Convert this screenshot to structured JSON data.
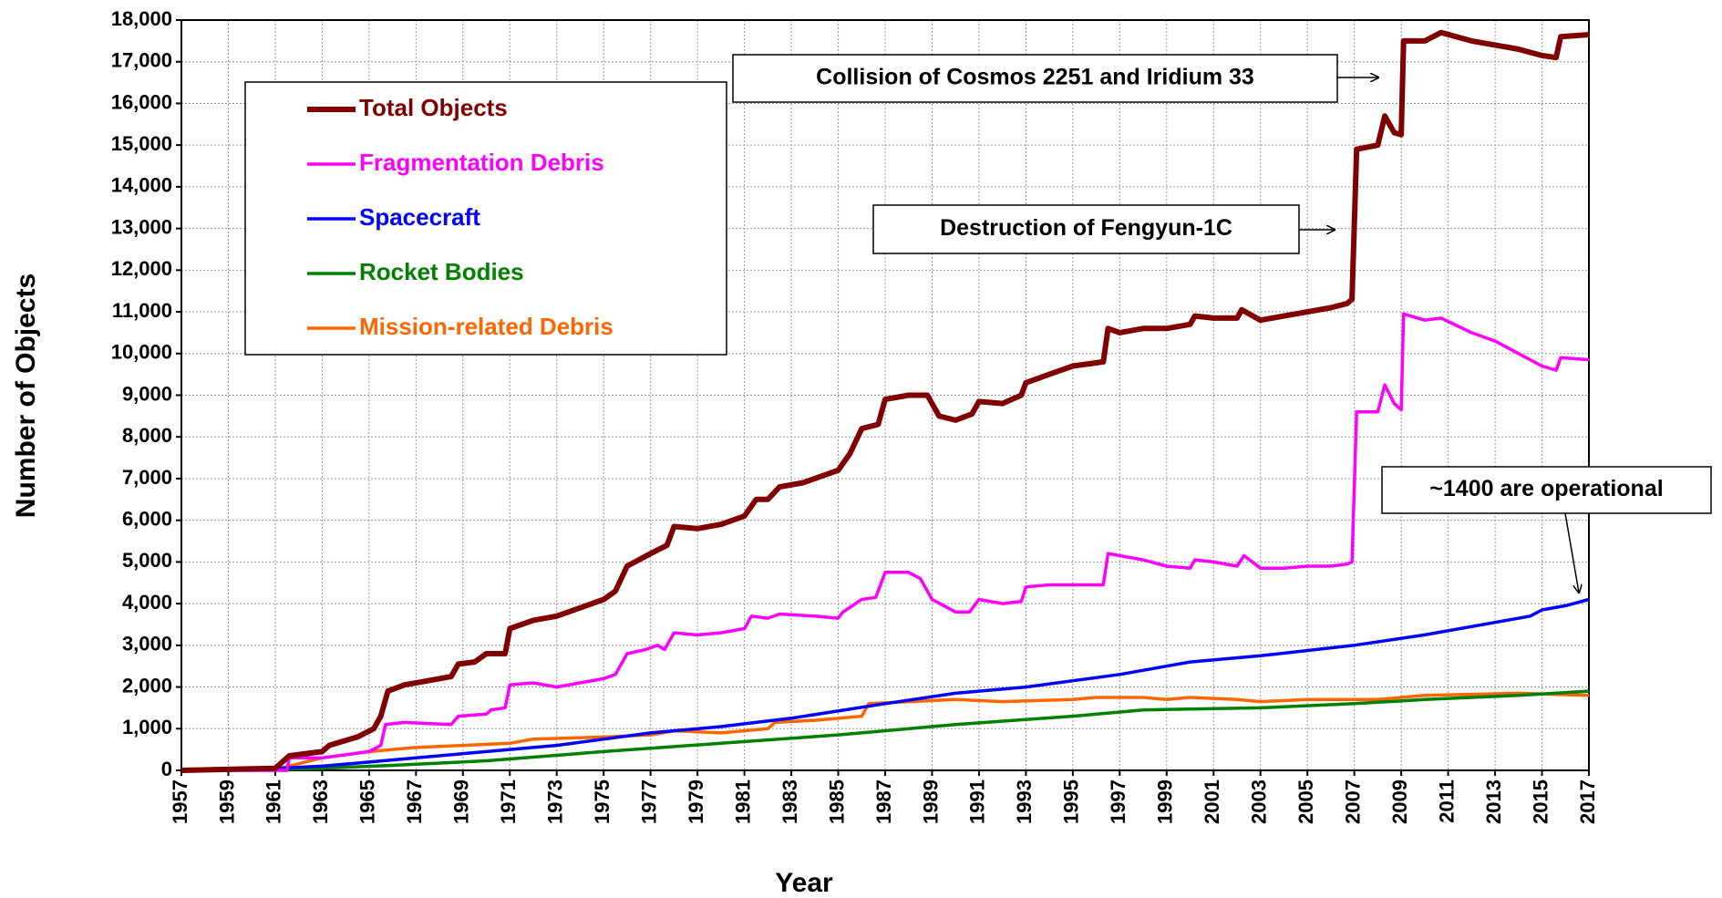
{
  "chart_data": {
    "type": "line",
    "xlabel": "Year",
    "ylabel": "Number of Objects",
    "xlim": [
      1957,
      2017
    ],
    "xticks": [
      1957,
      1959,
      1961,
      1963,
      1965,
      1967,
      1969,
      1971,
      1973,
      1975,
      1977,
      1979,
      1981,
      1983,
      1985,
      1987,
      1989,
      1991,
      1993,
      1995,
      1997,
      1999,
      2001,
      2003,
      2005,
      2007,
      2009,
      2011,
      2013,
      2015,
      2017
    ],
    "ylim": [
      0,
      18000
    ],
    "yticks": [
      {
        "value": 0,
        "label": "0"
      },
      {
        "value": 1000,
        "label": "1,000"
      },
      {
        "value": 2000,
        "label": "2,000"
      },
      {
        "value": 3000,
        "label": "3,000"
      },
      {
        "value": 4000,
        "label": "4,000"
      },
      {
        "value": 5000,
        "label": "5,000"
      },
      {
        "value": 6000,
        "label": "6,000"
      },
      {
        "value": 7000,
        "label": "7,000"
      },
      {
        "value": 8000,
        "label": "8,000"
      },
      {
        "value": 9000,
        "label": "9,000"
      },
      {
        "value": 10000,
        "label": "10,000"
      },
      {
        "value": 11000,
        "label": "11,000"
      },
      {
        "value": 12000,
        "label": "12,000"
      },
      {
        "value": 13000,
        "label": "13,000"
      },
      {
        "value": 14000,
        "label": "14,000"
      },
      {
        "value": 15000,
        "label": "15,000"
      },
      {
        "value": 16000,
        "label": "16,000"
      },
      {
        "value": 17000,
        "label": "17,000"
      },
      {
        "value": 18000,
        "label": "18,000"
      }
    ],
    "grid": true,
    "legend": "upper left",
    "annotations": [
      "Collision of Cosmos 2251 and Iridium 33",
      "Destruction of Fengyun-1C",
      "~1400 are operational"
    ],
    "series": [
      {
        "name": "Total Objects",
        "color": "#800000",
        "x": [
          1957,
          1961,
          1961.6,
          1963,
          1963.3,
          1964.5,
          1965.2,
          1965.5,
          1965.8,
          1966.5,
          1968,
          1968.5,
          1968.8,
          1969.5,
          1970,
          1970.8,
          1971,
          1972,
          1973,
          1974,
          1975,
          1975.5,
          1976,
          1977,
          1977.7,
          1978,
          1979,
          1980,
          1981,
          1981.5,
          1982,
          1982.5,
          1983.5,
          1984,
          1985,
          1985.5,
          1986,
          1986.7,
          1987,
          1988,
          1988.8,
          1989.3,
          1990,
          1990.7,
          1991,
          1992,
          1992.8,
          1993,
          1994,
          1995,
          1996.3,
          1996.5,
          1997,
          1998,
          1999,
          2000,
          2000.2,
          2001,
          2002,
          2002.2,
          2003,
          2004,
          2005,
          2006,
          2006.7,
          2006.9,
          2007.1,
          2008,
          2008.3,
          2008.7,
          2009,
          2009.1,
          2010,
          2010.7,
          2012,
          2013,
          2014,
          2015,
          2015.6,
          2015.8,
          2017
        ],
        "values": [
          0,
          50,
          350,
          450,
          600,
          800,
          1000,
          1300,
          1900,
          2050,
          2200,
          2250,
          2550,
          2600,
          2800,
          2800,
          3400,
          3600,
          3700,
          3900,
          4100,
          4300,
          4900,
          5200,
          5400,
          5850,
          5800,
          5900,
          6100,
          6500,
          6500,
          6800,
          6900,
          7000,
          7200,
          7600,
          8200,
          8300,
          8900,
          9000,
          9000,
          8500,
          8400,
          8550,
          8850,
          8800,
          9000,
          9300,
          9500,
          9700,
          9800,
          10600,
          10500,
          10600,
          10600,
          10700,
          10900,
          10850,
          10850,
          11050,
          10800,
          10900,
          11000,
          11100,
          11200,
          11300,
          14900,
          15000,
          15700,
          15300,
          15250,
          17500,
          17500,
          17700,
          17500,
          17400,
          17300,
          17150,
          17100,
          17600,
          17650
        ]
      },
      {
        "name": "Fragmentation Debris",
        "color": "#ff00ff",
        "x": [
          1957,
          1961.5,
          1961.6,
          1963,
          1965,
          1965.5,
          1965.7,
          1966.5,
          1968.5,
          1968.8,
          1970,
          1970.2,
          1970.8,
          1971,
          1972,
          1973,
          1974,
          1975,
          1975.5,
          1976,
          1976.8,
          1977.3,
          1977.6,
          1978,
          1979,
          1980,
          1981,
          1981.3,
          1982,
          1982.5,
          1984,
          1985,
          1985.2,
          1986,
          1986.6,
          1987,
          1988,
          1988.5,
          1989,
          1990,
          1990.6,
          1991,
          1992,
          1992.8,
          1993,
          1994,
          1995,
          1996.3,
          1996.5,
          1997,
          1998,
          1999,
          2000,
          2000.2,
          2001,
          2002,
          2002.3,
          2003,
          2004,
          2005,
          2006,
          2006.7,
          2006.9,
          2007.1,
          2008,
          2008.3,
          2008.7,
          2009,
          2009.1,
          2010,
          2010.7,
          2012,
          2013,
          2014,
          2015,
          2015.6,
          2015.8,
          2017
        ],
        "values": [
          0,
          0,
          300,
          300,
          450,
          600,
          1100,
          1150,
          1100,
          1300,
          1350,
          1450,
          1500,
          2050,
          2100,
          2000,
          2100,
          2200,
          2300,
          2800,
          2900,
          3000,
          2900,
          3300,
          3250,
          3300,
          3400,
          3700,
          3650,
          3750,
          3700,
          3650,
          3800,
          4100,
          4150,
          4750,
          4750,
          4600,
          4100,
          3800,
          3800,
          4100,
          4000,
          4050,
          4400,
          4450,
          4450,
          4450,
          5200,
          5150,
          5050,
          4900,
          4850,
          5050,
          5000,
          4900,
          5150,
          4850,
          4850,
          4900,
          4900,
          4950,
          5000,
          8600,
          8600,
          9250,
          8800,
          8650,
          10950,
          10800,
          10850,
          10500,
          10300,
          10000,
          9700,
          9600,
          9900,
          9850
        ]
      },
      {
        "name": "Spacecraft",
        "color": "#0000ff",
        "x": [
          1957,
          1960,
          1963,
          1965,
          1967,
          1970,
          1973,
          1977,
          1980,
          1983,
          1987,
          1990,
          1993,
          1997,
          2000,
          2003,
          2007,
          2010,
          2013,
          2014.5,
          2015,
          2016,
          2017
        ],
        "values": [
          0,
          20,
          100,
          200,
          300,
          450,
          600,
          900,
          1050,
          1250,
          1600,
          1850,
          2000,
          2300,
          2600,
          2750,
          3000,
          3250,
          3550,
          3700,
          3850,
          3950,
          4100
        ]
      },
      {
        "name": "Rocket Bodies",
        "color": "#008000",
        "x": [
          1957,
          1960,
          1963,
          1966,
          1970,
          1975,
          1980,
          1985,
          1990,
          1995,
          1998,
          2003,
          2007,
          2010,
          2014,
          2017
        ],
        "values": [
          0,
          10,
          50,
          120,
          230,
          450,
          650,
          850,
          1100,
          1300,
          1450,
          1500,
          1600,
          1700,
          1800,
          1900
        ]
      },
      {
        "name": "Mission-related Debris",
        "color": "#ff6600",
        "x": [
          1957,
          1961,
          1963,
          1965,
          1967,
          1969,
          1971,
          1972,
          1975,
          1977,
          1978,
          1980,
          1982,
          1982.3,
          1984,
          1986,
          1986.3,
          1988,
          1990,
          1992,
          1995,
          1996,
          1998,
          1999,
          2000,
          2002,
          2003,
          2005,
          2008,
          2010,
          2014,
          2017
        ],
        "values": [
          0,
          20,
          300,
          450,
          550,
          600,
          650,
          750,
          800,
          850,
          950,
          900,
          1000,
          1150,
          1200,
          1300,
          1600,
          1650,
          1700,
          1650,
          1700,
          1750,
          1750,
          1700,
          1750,
          1700,
          1650,
          1700,
          1700,
          1800,
          1850,
          1800
        ]
      }
    ]
  }
}
